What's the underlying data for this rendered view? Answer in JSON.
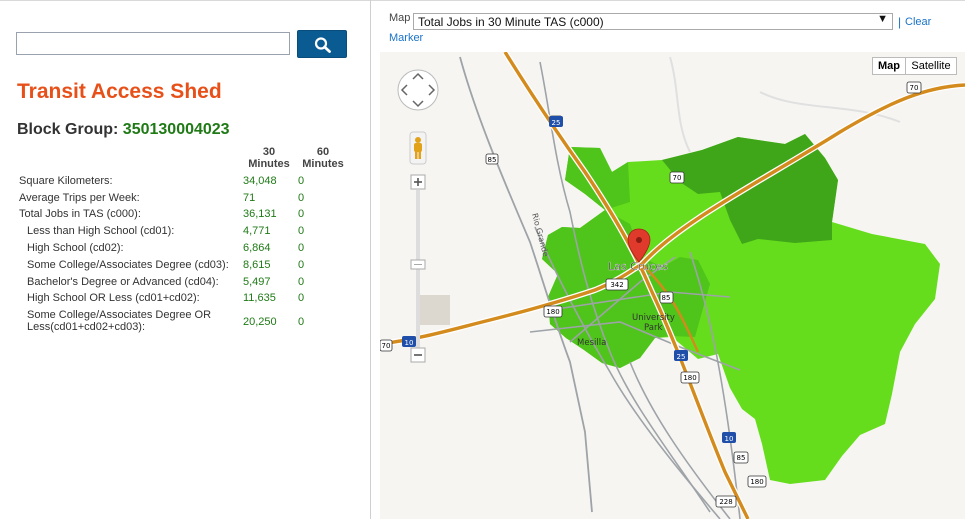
{
  "search": {
    "value": "",
    "placeholder": ""
  },
  "icons": {
    "search": "search-icon",
    "pan": "pan-control-icon",
    "pegman": "pegman-icon",
    "marker": "map-marker-icon",
    "zoom_in": "plus-icon",
    "zoom_out": "minus-icon"
  },
  "colors": {
    "title": "#e8501a",
    "block_group_id": "#1f7a16",
    "values": "#1f7a16",
    "search_button": "#0b5b93",
    "shed_light": "#66dd1c",
    "shed_mid": "#4fc41a",
    "shed_dark": "#3fa61a",
    "link": "#1a73c8"
  },
  "page": {
    "title": "Transit Access Shed",
    "block_group_label": "Block Group:",
    "block_group_id": "350130004023"
  },
  "table": {
    "col1_line1": "30",
    "col1_line2": "Minutes",
    "col2_line1": "60",
    "col2_line2": "Minutes",
    "rows": [
      {
        "label": "Square Kilometers:",
        "v30": "34,048",
        "v60": "0"
      },
      {
        "label": "Average Trips per Week:",
        "v30": "71",
        "v60": "0"
      },
      {
        "label": "Total Jobs in TAS (c000):",
        "v30": "36,131",
        "v60": "0"
      },
      {
        "label": "Less than High School (cd01):",
        "v30": "4,771",
        "v60": "0"
      },
      {
        "label": "High School (cd02):",
        "v30": "6,864",
        "v60": "0"
      },
      {
        "label": "Some College/Associates Degree (cd03):",
        "v30": "8,615",
        "v60": "0"
      },
      {
        "label": "Bachelor's Degree or Advanced (cd04):",
        "v30": "5,497",
        "v60": "0"
      },
      {
        "label": "High School OR Less (cd01+cd02):",
        "v30": "11,635",
        "v60": "0"
      },
      {
        "label_line1": "Some College/Associates Degree OR",
        "label_line2": "Less(cd01+cd02+cd03):",
        "v30": "20,250",
        "v60": "0"
      }
    ]
  },
  "map_panel": {
    "map_label": "Map",
    "layer_selected": "Total Jobs in 30 Minute TAS (c000)",
    "separator": "|",
    "clear_line1": "Clear",
    "clear_line2": "Marker",
    "type_map": "Map",
    "type_satellite": "Satellite",
    "places": {
      "city": "Las Cruces",
      "mesilla": "Mesilla",
      "university_line1": "University",
      "university_line2": "Park",
      "river": "Rio Grande"
    },
    "shields": {
      "i25_top": "25",
      "i25_mid": "25",
      "i10_left": "10",
      "i10_bottom": "10",
      "us70_top": "70",
      "us70_mid": "70",
      "us70_left": "70",
      "r85_top": "85",
      "r85_mid": "85",
      "r85_bottom": "85",
      "r180_mid": "180",
      "r180_right": "180",
      "r180_bottom": "180",
      "r342": "342",
      "r228": "228"
    }
  }
}
